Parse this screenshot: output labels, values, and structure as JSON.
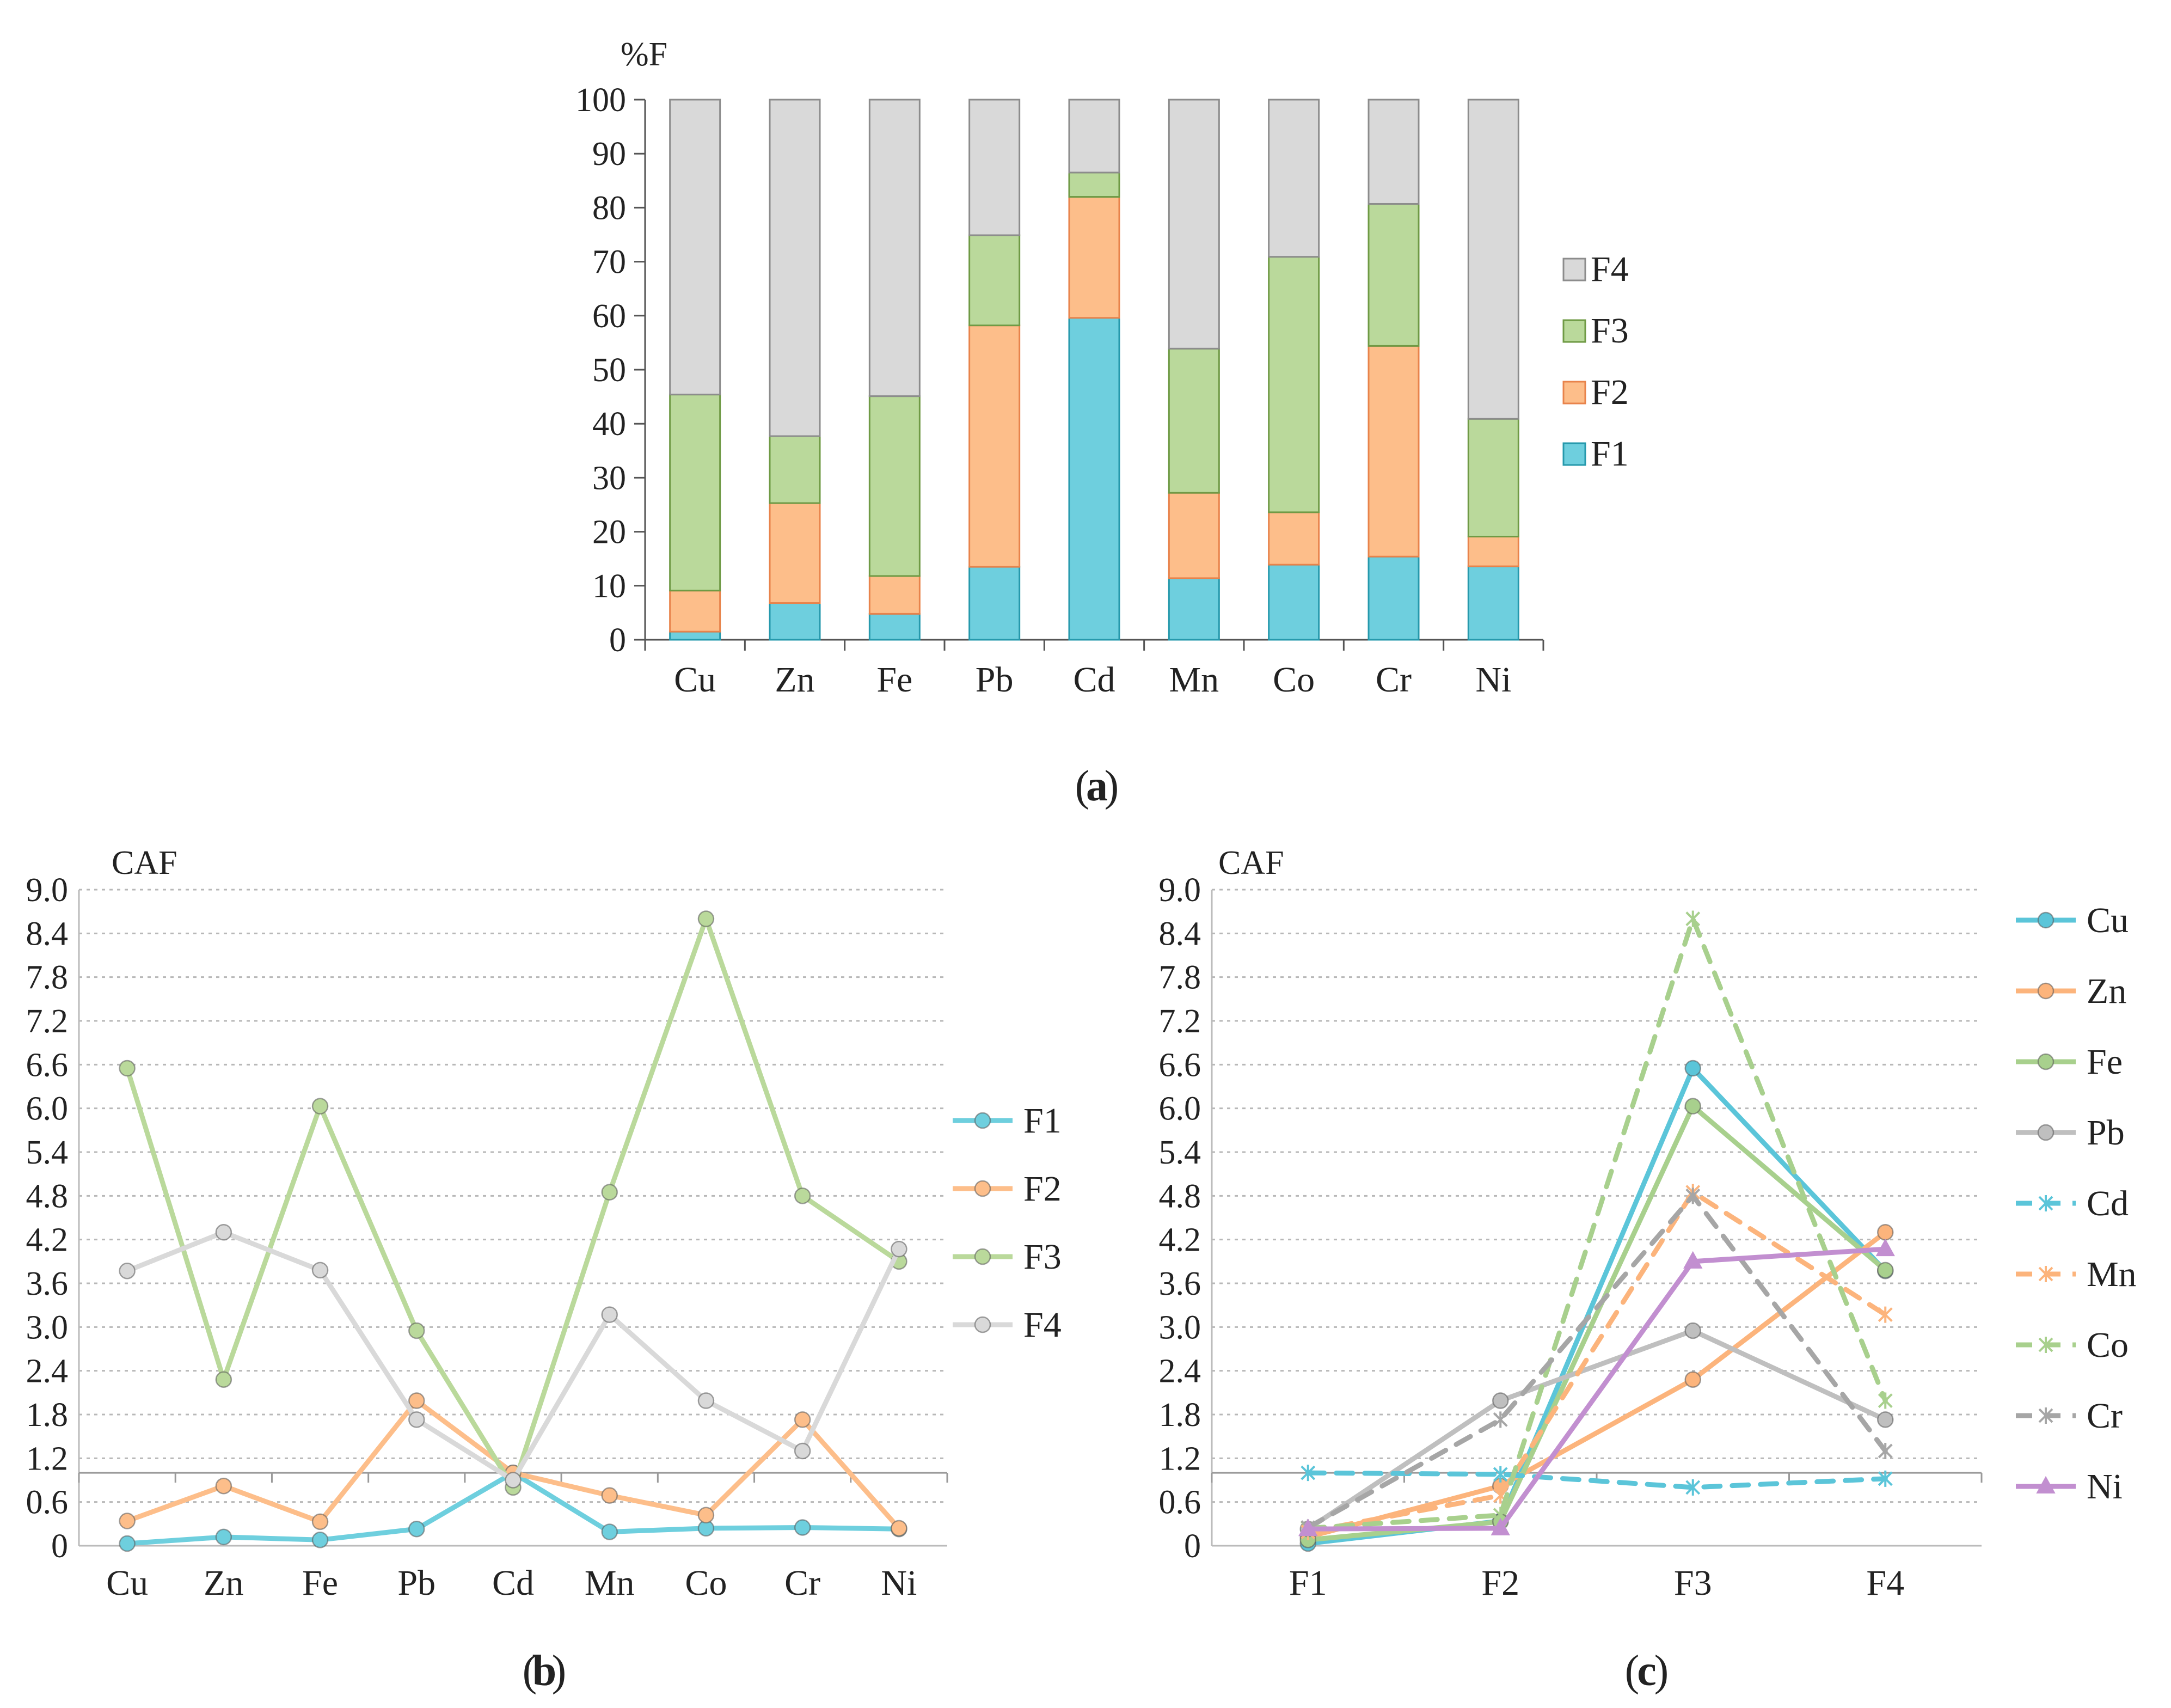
{
  "colors": {
    "F1": "#6ECFDE",
    "F2": "#FDBE8A",
    "F3": "#BAD99B",
    "F4": "#D9D9D9",
    "F1_stroke": "#2699AC",
    "F2_stroke": "#E8834B",
    "F3_stroke": "#6F9A45",
    "F4_stroke": "#8C8C8C",
    "Cu": "#5BC5D9",
    "Zn": "#FCB47C",
    "Fe": "#A8D08D",
    "Pb": "#BFBFBF",
    "Cd": "#5BC5D9",
    "Mn": "#FCB47C",
    "Co": "#A8D08D",
    "Cr": "#A6A6A6",
    "Ni": "#C28FD0"
  },
  "chart_data": [
    {
      "id": "a",
      "caption": "a",
      "type": "bar",
      "stacked": true,
      "ylabel": "%F",
      "ylim": [
        0,
        100
      ],
      "yticks": [
        "0",
        "10",
        "20",
        "30",
        "40",
        "50",
        "60",
        "70",
        "80",
        "90",
        "100"
      ],
      "categories": [
        "Cu",
        "Zn",
        "Fe",
        "Pb",
        "Cd",
        "Mn",
        "Co",
        "Cr",
        "Ni"
      ],
      "series": [
        {
          "name": "F1",
          "values": [
            1.5,
            6.8,
            4.8,
            13.5,
            59.6,
            11.4,
            13.9,
            15.4,
            13.6
          ]
        },
        {
          "name": "F2",
          "values": [
            7.6,
            18.5,
            7.0,
            44.7,
            22.4,
            15.8,
            9.7,
            39.0,
            5.5
          ]
        },
        {
          "name": "F3",
          "values": [
            36.3,
            12.4,
            33.3,
            16.7,
            4.5,
            26.7,
            47.3,
            26.3,
            21.8
          ]
        },
        {
          "name": "F4",
          "values": [
            54.6,
            62.3,
            54.9,
            25.1,
            13.5,
            46.1,
            29.1,
            19.3,
            59.1
          ]
        }
      ],
      "legend": [
        "F4",
        "F3",
        "F2",
        "F1"
      ],
      "legend_position": "right"
    },
    {
      "id": "b",
      "caption": "b",
      "type": "line",
      "ylabel": "CAF",
      "ylim": [
        0,
        9
      ],
      "yticks": [
        "0",
        "0.6",
        "1.2",
        "1.8",
        "2.4",
        "3.0",
        "3.6",
        "4.2",
        "4.8",
        "5.4",
        "6.0",
        "6.6",
        "7.2",
        "7.8",
        "8.4",
        "9.0"
      ],
      "reference_line": 1.0,
      "categories": [
        "Cu",
        "Zn",
        "Fe",
        "Pb",
        "Cd",
        "Mn",
        "Co",
        "Cr",
        "Ni"
      ],
      "series": [
        {
          "name": "F1",
          "values": [
            0.03,
            0.12,
            0.08,
            0.23,
            1.0,
            0.19,
            0.24,
            0.25,
            0.23
          ]
        },
        {
          "name": "F2",
          "values": [
            0.34,
            0.82,
            0.33,
            1.99,
            1.0,
            0.69,
            0.42,
            1.73,
            0.24
          ]
        },
        {
          "name": "F3",
          "values": [
            6.55,
            2.28,
            6.03,
            2.95,
            0.8,
            4.85,
            8.6,
            4.8,
            3.9
          ]
        },
        {
          "name": "F4",
          "values": [
            3.77,
            4.3,
            3.78,
            1.73,
            0.9,
            3.17,
            1.99,
            1.3,
            4.07
          ]
        }
      ],
      "legend": [
        "F1",
        "F2",
        "F3",
        "F4"
      ],
      "legend_position": "right"
    },
    {
      "id": "c",
      "caption": "c",
      "type": "line",
      "ylabel": "CAF",
      "ylim": [
        0,
        9
      ],
      "yticks": [
        "0",
        "0.6",
        "1.2",
        "1.8",
        "2.4",
        "3.0",
        "3.6",
        "4.2",
        "4.8",
        "5.4",
        "6.0",
        "6.6",
        "7.2",
        "7.8",
        "8.4",
        "9.0"
      ],
      "reference_line": 1.0,
      "categories": [
        "F1",
        "F2",
        "F3",
        "F4"
      ],
      "series": [
        {
          "name": "Cu",
          "marker": "circle",
          "dash": false,
          "values": [
            0.03,
            0.34,
            6.55,
            3.77
          ]
        },
        {
          "name": "Zn",
          "marker": "circle",
          "dash": false,
          "values": [
            0.12,
            0.82,
            2.28,
            4.3
          ]
        },
        {
          "name": "Fe",
          "marker": "circle",
          "dash": false,
          "values": [
            0.08,
            0.33,
            6.03,
            3.78
          ]
        },
        {
          "name": "Pb",
          "marker": "circle",
          "dash": false,
          "values": [
            0.23,
            1.99,
            2.95,
            1.73
          ]
        },
        {
          "name": "Cd",
          "marker": "star",
          "dash": true,
          "values": [
            1.0,
            0.98,
            0.8,
            0.92
          ]
        },
        {
          "name": "Mn",
          "marker": "star",
          "dash": true,
          "values": [
            0.19,
            0.69,
            4.85,
            3.17
          ]
        },
        {
          "name": "Co",
          "marker": "star",
          "dash": true,
          "values": [
            0.24,
            0.42,
            8.6,
            1.99
          ]
        },
        {
          "name": "Cr",
          "marker": "star",
          "dash": true,
          "values": [
            0.25,
            1.73,
            4.8,
            1.3
          ]
        },
        {
          "name": "Ni",
          "marker": "triangle",
          "dash": false,
          "values": [
            0.23,
            0.24,
            3.9,
            4.07
          ]
        }
      ],
      "legend": [
        "Cu",
        "Zn",
        "Fe",
        "Pb",
        "Cd",
        "Mn",
        "Co",
        "Cr",
        "Ni"
      ],
      "legend_position": "right"
    }
  ]
}
